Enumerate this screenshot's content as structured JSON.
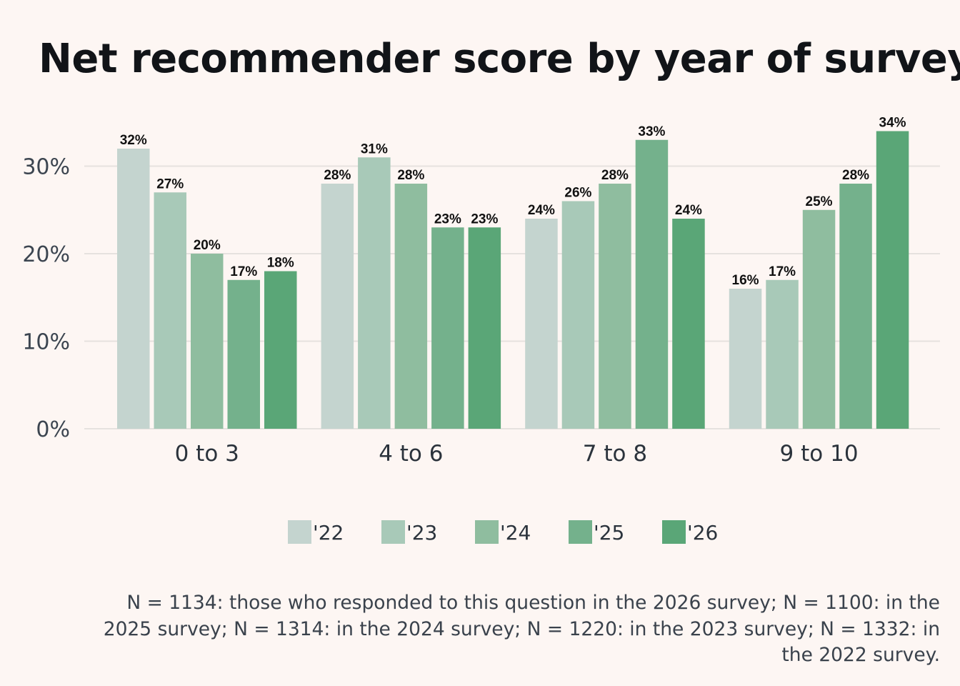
{
  "chart_data": {
    "type": "bar",
    "title": "Net recommender score by year of survey",
    "categories": [
      "0 to 3",
      "4 to 6",
      "7 to 8",
      "9 to 10"
    ],
    "series": [
      {
        "name": "'22",
        "color": "#c4d4cf",
        "values": [
          32,
          28,
          24,
          16
        ],
        "labels": [
          "32%",
          "28%",
          "24%",
          "16%"
        ]
      },
      {
        "name": "'23",
        "color": "#a8c9b8",
        "values": [
          27,
          31,
          26,
          17
        ],
        "labels": [
          "27%",
          "31%",
          "26%",
          "17%"
        ]
      },
      {
        "name": "'24",
        "color": "#8fbd9f",
        "values": [
          20,
          28,
          28,
          25
        ],
        "labels": [
          "20%",
          "28%",
          "28%",
          "25%"
        ]
      },
      {
        "name": "'25",
        "color": "#74b18c",
        "values": [
          17,
          23,
          33,
          28
        ],
        "labels": [
          "17%",
          "23%",
          "33%",
          "28%"
        ]
      },
      {
        "name": "'26",
        "color": "#5aa677",
        "values": [
          18,
          23,
          24,
          34
        ],
        "labels": [
          "18%",
          "23%",
          "24%",
          "34%"
        ]
      }
    ],
    "y_ticks": [
      0,
      10,
      20,
      30
    ],
    "y_tick_labels": [
      "0%",
      "10%",
      "20%",
      "30%"
    ],
    "ylim": [
      0,
      35
    ],
    "grid": true,
    "legend_position": "bottom",
    "caption": "N = 1134: those who responded to this question in the 2026 survey; N = 1100: in the 2025 survey; N = 1314: in the 2024 survey; N = 1220: in the 2023 survey; N = 1332: in the 2022 survey."
  }
}
